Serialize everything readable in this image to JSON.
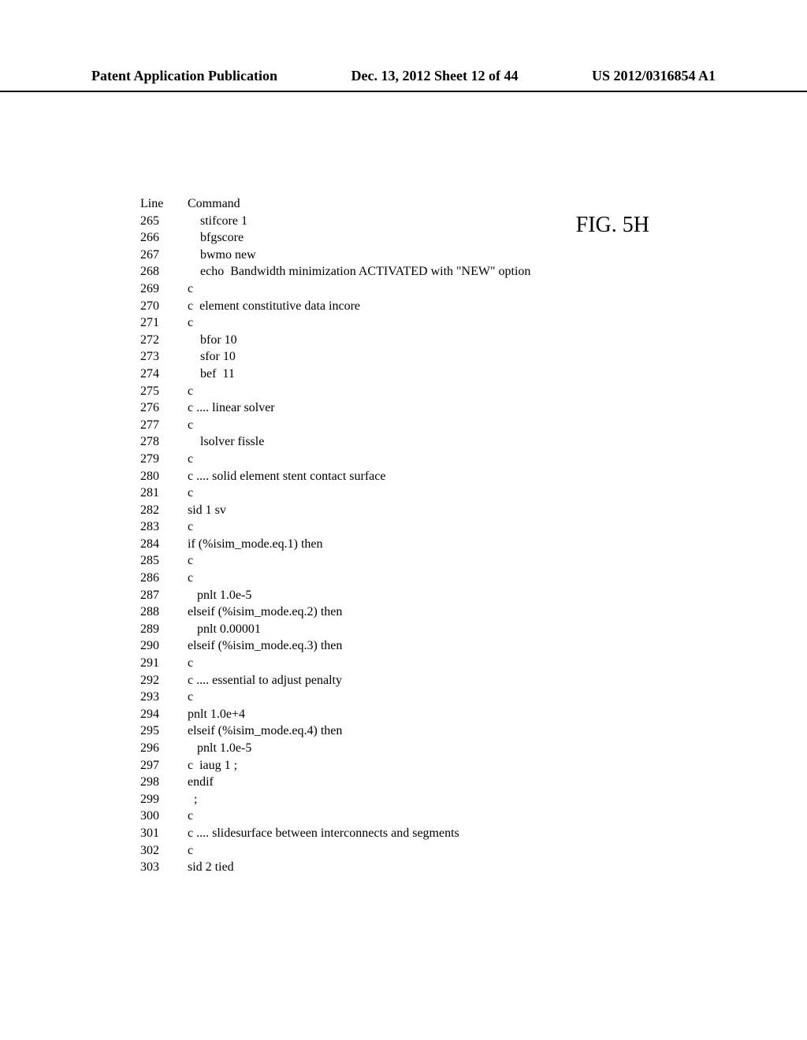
{
  "header": {
    "left": "Patent Application Publication",
    "mid": "Dec. 13, 2012  Sheet 12 of 44",
    "right": "US 2012/0316854 A1"
  },
  "figure_label": "FIG. 5H",
  "code": {
    "line_header": "Line",
    "command_header": "Command",
    "rows": [
      {
        "n": "265",
        "t": "    stifcore 1"
      },
      {
        "n": "266",
        "t": "    bfgscore"
      },
      {
        "n": "267",
        "t": "    bwmo new"
      },
      {
        "n": "268",
        "t": "    echo  Bandwidth minimization ACTIVATED with \"NEW\" option"
      },
      {
        "n": "269",
        "t": "c"
      },
      {
        "n": "270",
        "t": "c  element constitutive data incore"
      },
      {
        "n": "271",
        "t": "c"
      },
      {
        "n": "272",
        "t": "    bfor 10"
      },
      {
        "n": "273",
        "t": "    sfor 10"
      },
      {
        "n": "274",
        "t": "    bef  11"
      },
      {
        "n": "275",
        "t": "c"
      },
      {
        "n": "276",
        "t": "c .... linear solver"
      },
      {
        "n": "277",
        "t": "c"
      },
      {
        "n": "278",
        "t": "    lsolver fissle"
      },
      {
        "n": "279",
        "t": "c"
      },
      {
        "n": "280",
        "t": "c .... solid element stent contact surface"
      },
      {
        "n": "281",
        "t": "c"
      },
      {
        "n": "282",
        "t": "sid 1 sv"
      },
      {
        "n": "283",
        "t": "c"
      },
      {
        "n": "284",
        "t": "if (%isim_mode.eq.1) then"
      },
      {
        "n": "285",
        "t": "c"
      },
      {
        "n": "286",
        "t": "c"
      },
      {
        "n": "287",
        "t": "   pnlt 1.0e-5"
      },
      {
        "n": "288",
        "t": "elseif (%isim_mode.eq.2) then"
      },
      {
        "n": "289",
        "t": "   pnlt 0.00001"
      },
      {
        "n": "290",
        "t": "elseif (%isim_mode.eq.3) then"
      },
      {
        "n": "291",
        "t": "c"
      },
      {
        "n": "292",
        "t": "c .... essential to adjust penalty"
      },
      {
        "n": "293",
        "t": "c"
      },
      {
        "n": "294",
        "t": "pnlt 1.0e+4"
      },
      {
        "n": "295",
        "t": "elseif (%isim_mode.eq.4) then"
      },
      {
        "n": "296",
        "t": "   pnlt 1.0e-5"
      },
      {
        "n": "297",
        "t": "c  iaug 1 ;"
      },
      {
        "n": "298",
        "t": "endif"
      },
      {
        "n": "299",
        "t": "  ;"
      },
      {
        "n": "300",
        "t": "c"
      },
      {
        "n": "301",
        "t": "c .... slidesurface between interconnects and segments"
      },
      {
        "n": "302",
        "t": "c"
      },
      {
        "n": "303",
        "t": "sid 2 tied"
      }
    ]
  }
}
